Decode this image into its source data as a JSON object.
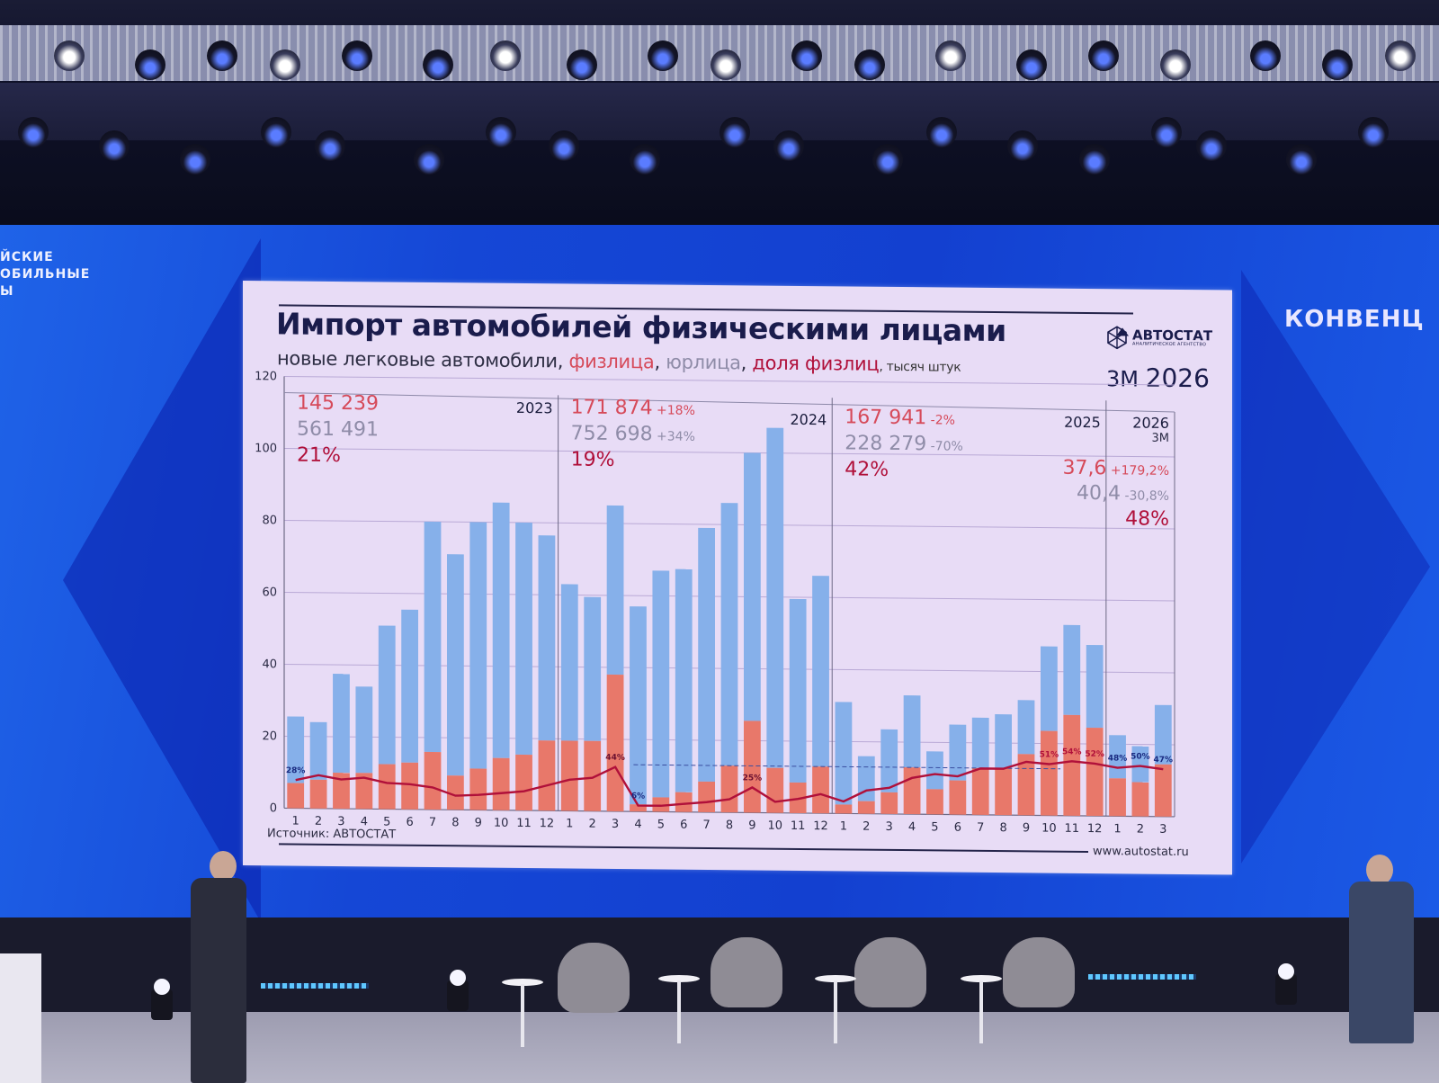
{
  "venue": {
    "left_banner_lines": [
      "ЙСКИЕ",
      "ОБИЛЬНЫЕ",
      "Ы"
    ],
    "right_banner": "КОНВЕНЦ"
  },
  "slide": {
    "title": "Импорт автомобилей физическими лицами",
    "subtitle": {
      "prefix": "новые легковые автомобили, ",
      "fiz": "физлица",
      "sep1": ", ",
      "yur": "юрлица",
      "sep2": ", ",
      "dol": "доля физлиц",
      "unit": ", тысяч штук"
    },
    "logo": {
      "name": "АВТОСТАТ",
      "tagline": "АНАЛИТИЧЕСКОЕ АГЕНТСТВО"
    },
    "period": {
      "prefix": "3М",
      "year": "2026"
    },
    "source": "Источник: АВТОСТАТ",
    "website": "www.autostat.ru",
    "colors": {
      "fiz": "#e8786a",
      "yur": "#86b0ea",
      "share_line": "#b0103a",
      "fiz_text": "#d64a5a",
      "yur_text": "#8f8ca8",
      "share_text": "#b0103a"
    },
    "year_panels": [
      {
        "year": "2023",
        "sub": "",
        "fiz": "145 239",
        "fiz_chg": "",
        "yur": "561 491",
        "yur_chg": "",
        "share": "21%"
      },
      {
        "year": "2024",
        "sub": "",
        "fiz": "171 874",
        "fiz_chg": "+18%",
        "yur": "752 698",
        "yur_chg": "+34%",
        "share": "19%"
      },
      {
        "year": "2025",
        "sub": "",
        "fiz": "167 941",
        "fiz_chg": "-2%",
        "yur": "228 279",
        "yur_chg": "-70%",
        "share": "42%"
      },
      {
        "year": "2026",
        "sub": "3М",
        "fiz": "37,6",
        "fiz_chg": "+179,2%",
        "yur": "40,4",
        "yur_chg": "-30,8%",
        "share": "48%"
      }
    ]
  },
  "chart_data": {
    "type": "bar",
    "stacked": true,
    "title": "Импорт автомобилей физическими лицами",
    "subtitle": "новые легковые автомобили, физлица, юрлица, доля физлиц, тысяч штук",
    "xlabel": "",
    "ylabel": "тысяч штук",
    "ylim": [
      0,
      120
    ],
    "yticks": [
      0,
      20,
      40,
      60,
      80,
      100,
      120
    ],
    "grid": true,
    "categories": [
      "2023-1",
      "2023-2",
      "2023-3",
      "2023-4",
      "2023-5",
      "2023-6",
      "2023-7",
      "2023-8",
      "2023-9",
      "2023-10",
      "2023-11",
      "2023-12",
      "2024-1",
      "2024-2",
      "2024-3",
      "2024-4",
      "2024-5",
      "2024-6",
      "2024-7",
      "2024-8",
      "2024-9",
      "2024-10",
      "2024-11",
      "2024-12",
      "2025-1",
      "2025-2",
      "2025-3",
      "2025-4",
      "2025-5",
      "2025-6",
      "2025-7",
      "2025-8",
      "2025-9",
      "2025-10",
      "2025-11",
      "2025-12",
      "2026-1",
      "2026-2",
      "2026-3"
    ],
    "tick_labels": [
      "1",
      "2",
      "3",
      "4",
      "5",
      "6",
      "7",
      "8",
      "9",
      "10",
      "11",
      "12",
      "1",
      "2",
      "3",
      "4",
      "5",
      "6",
      "7",
      "8",
      "9",
      "10",
      "11",
      "12",
      "1",
      "2",
      "3",
      "4",
      "5",
      "6",
      "7",
      "8",
      "9",
      "10",
      "11",
      "12",
      "1",
      "2",
      "3"
    ],
    "series": [
      {
        "name": "физлица",
        "color": "#e8786a",
        "values": [
          7,
          8,
          10,
          10,
          12.5,
          13,
          16,
          9.5,
          11.5,
          14.5,
          15.5,
          19.5,
          19.5,
          19.5,
          38,
          2,
          4,
          5.5,
          8.5,
          13,
          25.5,
          12.5,
          8.5,
          13,
          2.5,
          3.5,
          6,
          13,
          7,
          9.5,
          13,
          13,
          17,
          23.5,
          28,
          24.5,
          10.5,
          9.5,
          14.5
        ]
      },
      {
        "name": "юрлица",
        "color": "#86b0ea",
        "values": [
          18.5,
          16,
          27.5,
          24,
          38.5,
          42.5,
          64,
          61.5,
          68.5,
          71,
          64.5,
          57,
          43.5,
          40,
          47,
          55,
          63,
          62,
          70.5,
          73,
          74.5,
          94.5,
          51,
          53,
          28.5,
          12.5,
          17.5,
          20,
          10.5,
          15.5,
          14,
          15,
          15,
          23.5,
          25,
          23,
          12,
          10,
          16.5
        ]
      },
      {
        "name": "доля физлиц",
        "color": "#b0103a",
        "type": "line",
        "unit": "%",
        "values": [
          28,
          33,
          29,
          31,
          26,
          25,
          22,
          14,
          15,
          17,
          19,
          25,
          31,
          33,
          44,
          6,
          6,
          8,
          10,
          13,
          25,
          11,
          14,
          19,
          12,
          23,
          26,
          36,
          40,
          38,
          46,
          46,
          53,
          51,
          54,
          52,
          48,
          50,
          47
        ]
      }
    ],
    "annotations": [
      {
        "index": 0,
        "text": "28%"
      },
      {
        "index": 14,
        "text": "44%"
      },
      {
        "index": 15,
        "text": "6%"
      },
      {
        "index": 20,
        "text": "25%"
      },
      {
        "index": 33,
        "text": "51%"
      },
      {
        "index": 34,
        "text": "54%"
      },
      {
        "index": 35,
        "text": "52%"
      },
      {
        "index": 36,
        "text": "48%"
      },
      {
        "index": 37,
        "text": "50%"
      },
      {
        "index": 38,
        "text": "47%"
      }
    ],
    "reference_line": {
      "from_index": 15,
      "to_index": 33,
      "value": 13,
      "style": "dashed"
    },
    "year_separators_after_index": [
      11,
      23,
      35
    ]
  }
}
